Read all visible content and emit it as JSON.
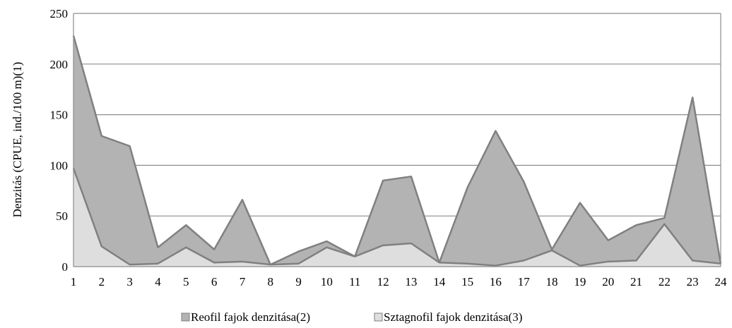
{
  "chart_data": {
    "type": "area",
    "ylabel": "Denzitás (CPUE, ind./100 m)(1)",
    "xlabel": "",
    "ylim": [
      0,
      250
    ],
    "yticks": [
      0,
      50,
      100,
      150,
      200,
      250
    ],
    "grid": true,
    "legend_position": "bottom",
    "categories": [
      "1",
      "2",
      "3",
      "4",
      "5",
      "6",
      "7",
      "8",
      "9",
      "10",
      "11",
      "12",
      "13",
      "14",
      "15",
      "16",
      "17",
      "18",
      "19",
      "20",
      "21",
      "22",
      "23",
      "24"
    ],
    "series": [
      {
        "name": "Reofil fajok denzitása(2)",
        "color": "#b3b3b3",
        "line_color": "#808080",
        "values": [
          228,
          129,
          119,
          19,
          41,
          17,
          66,
          2,
          15,
          25,
          10,
          85,
          89,
          4,
          78,
          134,
          84,
          17,
          63,
          26,
          41,
          48,
          167,
          3
        ]
      },
      {
        "name": "Sztagnofil fajok denzitása(3)",
        "color": "#dedede",
        "line_color": "#808080",
        "values": [
          97,
          20,
          2,
          3,
          19,
          4,
          5,
          2,
          3,
          19,
          10,
          21,
          23,
          4,
          3,
          1,
          6,
          16,
          1,
          5,
          6,
          42,
          6,
          3
        ]
      }
    ]
  }
}
